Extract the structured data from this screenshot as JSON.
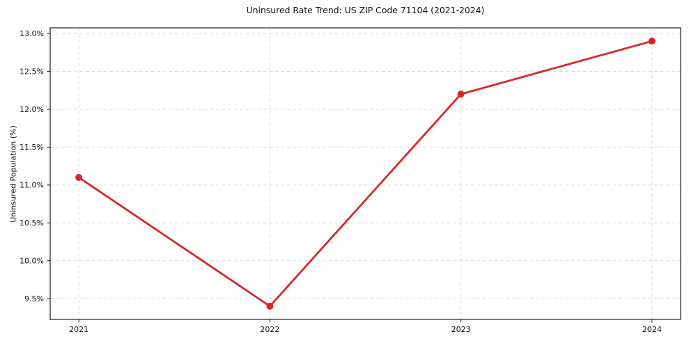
{
  "chart_data": {
    "type": "line",
    "title": "Uninsured Rate Trend: US ZIP Code 71104 (2021-2024)",
    "xlabel": "",
    "ylabel": "Uninsured Population (%)",
    "x": [
      2021,
      2022,
      2023,
      2024
    ],
    "x_tick_labels": [
      "2021",
      "2022",
      "2023",
      "2024"
    ],
    "series": [
      {
        "name": "Uninsured Rate",
        "values": [
          11.1,
          9.4,
          12.2,
          12.9
        ]
      }
    ],
    "y_ticks": [
      9.5,
      10.0,
      10.5,
      11.0,
      11.5,
      12.0,
      12.5,
      13.0
    ],
    "y_tick_labels": [
      "9.5%",
      "10.0%",
      "10.5%",
      "11.0%",
      "11.5%",
      "12.0%",
      "12.5%",
      "13.0%"
    ],
    "xlim": [
      2020.85,
      2024.15
    ],
    "ylim": [
      9.225,
      13.075
    ],
    "grid": true,
    "grid_style": "dashed",
    "legend_position": "none",
    "colors": {
      "line": "#d62728",
      "marker": "#d62728",
      "grid": "#d9d9d9",
      "frame": "#1a1a1a",
      "text": "#111111",
      "background": "#ffffff"
    }
  }
}
